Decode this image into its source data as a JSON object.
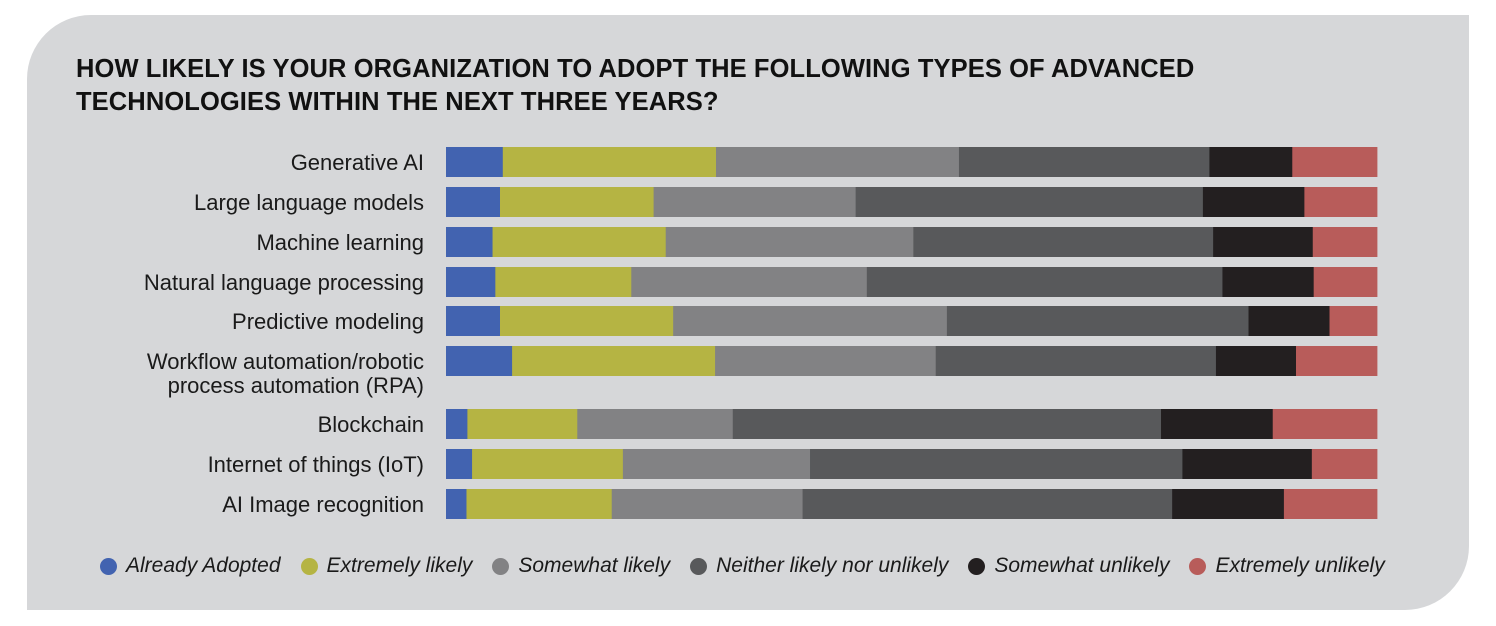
{
  "chart_data": {
    "type": "bar",
    "orientation": "horizontal",
    "stacked": true,
    "normalized_percent": true,
    "title_lines": [
      "HOW LIKELY IS YOUR ORGANIZATION TO ADOPT THE FOLLOWING TYPES OF ADVANCED",
      "TECHNOLOGIES WITHIN THE NEXT THREE YEARS?"
    ],
    "categories": [
      [
        "Generative AI"
      ],
      [
        "Large language models"
      ],
      [
        "Machine learning"
      ],
      [
        "Natural language processing"
      ],
      [
        "Predictive modeling"
      ],
      [
        "Workflow automation/robotic",
        "process automation (RPA)"
      ],
      [
        "Blockchain"
      ],
      [
        "Internet of things (IoT)"
      ],
      [
        "AI Image recognition"
      ]
    ],
    "series": [
      {
        "name": "Already Adopted",
        "color": "#4263b0",
        "values": [
          6.1,
          5.8,
          5.0,
          5.3,
          5.8,
          7.1,
          2.3,
          2.8,
          2.2
        ]
      },
      {
        "name": "Extremely likely",
        "color": "#b5b443",
        "values": [
          22.9,
          16.5,
          18.6,
          14.6,
          18.6,
          21.8,
          11.8,
          16.2,
          15.6
        ]
      },
      {
        "name": "Somewhat likely",
        "color": "#828284",
        "values": [
          26.1,
          21.7,
          26.6,
          25.3,
          29.4,
          23.7,
          16.7,
          20.1,
          20.5
        ]
      },
      {
        "name": "Neither likely nor unlikely",
        "color": "#58595b",
        "values": [
          26.9,
          37.3,
          32.2,
          38.2,
          32.4,
          30.1,
          46.0,
          40.0,
          39.7
        ]
      },
      {
        "name": "Somewhat unlikely",
        "color": "#231f20",
        "values": [
          8.9,
          10.9,
          10.7,
          9.8,
          8.7,
          8.6,
          12.0,
          13.9,
          12.0
        ]
      },
      {
        "name": "Extremely unlikely",
        "color": "#b85c5a",
        "values": [
          9.1,
          7.8,
          6.9,
          6.8,
          5.1,
          8.7,
          11.2,
          7.0,
          10.0
        ]
      }
    ],
    "xlim": [
      0,
      100
    ],
    "grid": false,
    "legend_position": "bottom"
  }
}
